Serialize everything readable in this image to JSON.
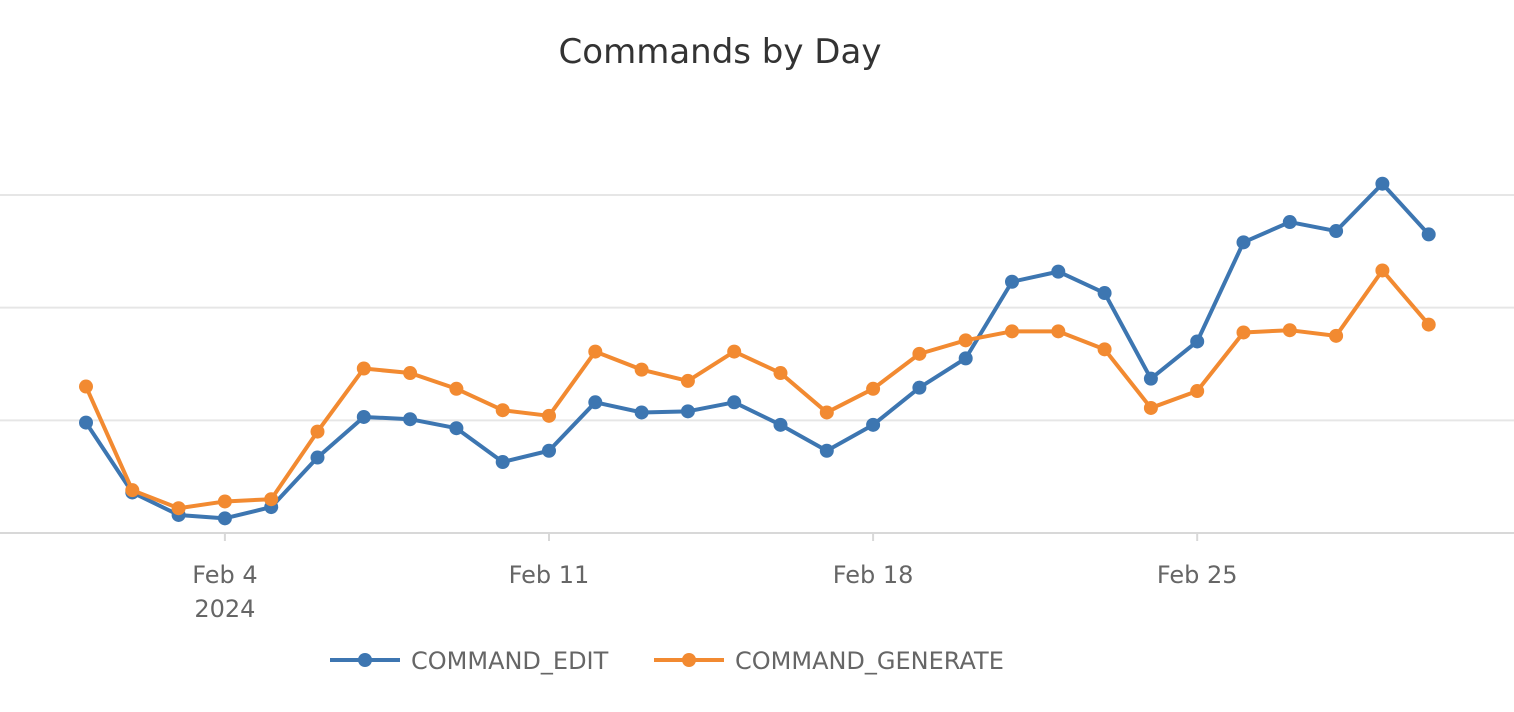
{
  "chart_data": {
    "type": "line",
    "title": "Commands by Day",
    "x": [
      "2024-02-01",
      "2024-02-02",
      "2024-02-03",
      "2024-02-04",
      "2024-02-05",
      "2024-02-06",
      "2024-02-07",
      "2024-02-08",
      "2024-02-09",
      "2024-02-10",
      "2024-02-11",
      "2024-02-12",
      "2024-02-13",
      "2024-02-14",
      "2024-02-15",
      "2024-02-16",
      "2024-02-17",
      "2024-02-18",
      "2024-02-19",
      "2024-02-20",
      "2024-02-21",
      "2024-02-22",
      "2024-02-23",
      "2024-02-24",
      "2024-02-25",
      "2024-02-26",
      "2024-02-27",
      "2024-02-28",
      "2024-02-29",
      "2024-03-01"
    ],
    "x_ticks": [
      {
        "label": "Feb 4",
        "sublabel": "2024",
        "date": "2024-02-04"
      },
      {
        "label": "Feb 11",
        "sublabel": "",
        "date": "2024-02-11"
      },
      {
        "label": "Feb 18",
        "sublabel": "",
        "date": "2024-02-18"
      },
      {
        "label": "Feb 25",
        "sublabel": "",
        "date": "2024-02-25"
      }
    ],
    "ylim": [
      0,
      3
    ],
    "y_gridlines": [
      0,
      1,
      2,
      3
    ],
    "grid": true,
    "legend": "bottom",
    "series": [
      {
        "name": "COMMAND_EDIT",
        "color": "#3d76b1",
        "values": [
          0.98,
          0.36,
          0.16,
          0.13,
          0.23,
          0.67,
          1.03,
          1.01,
          0.93,
          0.63,
          0.73,
          1.16,
          1.07,
          1.08,
          1.16,
          0.96,
          0.73,
          0.96,
          1.29,
          1.55,
          2.23,
          2.32,
          2.13,
          1.37,
          1.7,
          2.58,
          2.76,
          2.68,
          3.1,
          2.65
        ]
      },
      {
        "name": "COMMAND_GENERATE",
        "color": "#f28a31",
        "values": [
          1.3,
          0.38,
          0.22,
          0.28,
          0.3,
          0.9,
          1.46,
          1.42,
          1.28,
          1.09,
          1.04,
          1.61,
          1.45,
          1.35,
          1.61,
          1.42,
          1.07,
          1.28,
          1.59,
          1.71,
          1.79,
          1.79,
          1.63,
          1.11,
          1.26,
          1.78,
          1.8,
          1.75,
          2.33,
          1.85
        ]
      }
    ]
  }
}
